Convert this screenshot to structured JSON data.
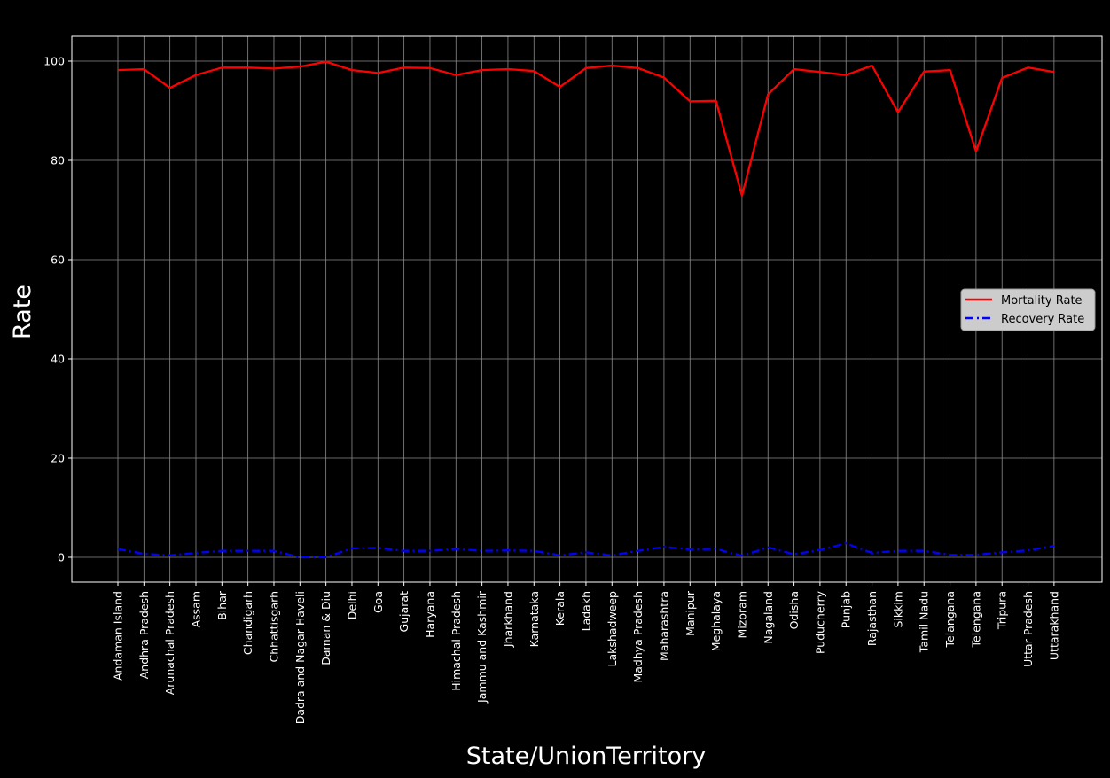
{
  "chart_data": {
    "type": "line",
    "title": "",
    "xlabel": "State/UnionTerritory",
    "ylabel": "Rate",
    "ylim": [
      -5,
      105
    ],
    "yticks": [
      0,
      20,
      40,
      60,
      80,
      100
    ],
    "ytick_labels": [
      "0",
      "20",
      "40",
      "60",
      "80",
      "100"
    ],
    "grid": true,
    "legend_position": "center-right",
    "categories": [
      "Andaman Island",
      "Andhra Pradesh",
      "Arunachal Pradesh",
      "Assam",
      "Bihar",
      "Chandigarh",
      "Chhattisgarh",
      "Dadra and Nagar Haveli",
      "Daman & Diu",
      "Delhi",
      "Goa",
      "Gujarat",
      "Haryana",
      "Himachal Pradesh",
      "Jammu and Kashmir",
      "Jharkhand",
      "Karnataka",
      "Kerala",
      "Ladakh",
      "Lakshadweep",
      "Madhya Pradesh",
      "Maharashtra",
      "Manipur",
      "Meghalaya",
      "Mizoram",
      "Nagaland",
      "Odisha",
      "Puducherry",
      "Punjab",
      "Rajasthan",
      "Sikkim",
      "Tamil Nadu",
      "Telangana",
      "Telengana",
      "Tripura",
      "Uttar Pradesh",
      "Uttarakhand"
    ],
    "series": [
      {
        "name": "Mortality Rate",
        "color": "#ff0000",
        "style": "solid",
        "values": [
          98.2,
          98.4,
          94.6,
          97.2,
          98.7,
          98.7,
          98.5,
          98.9,
          99.9,
          98.2,
          97.6,
          98.7,
          98.6,
          97.2,
          98.2,
          98.4,
          98.0,
          94.8,
          98.6,
          99.1,
          98.6,
          96.7,
          91.9,
          92.0,
          72.9,
          93.3,
          98.4,
          97.8,
          97.2,
          99.1,
          89.7,
          97.9,
          98.2,
          81.8,
          96.6,
          98.7,
          97.8
        ]
      },
      {
        "name": "Recovery Rate",
        "color": "#0000ff",
        "style": "dashdot",
        "values": [
          1.7,
          0.7,
          0.4,
          0.9,
          1.3,
          1.3,
          1.3,
          0.0,
          0.0,
          1.8,
          1.9,
          1.3,
          1.3,
          1.7,
          1.3,
          1.4,
          1.3,
          0.4,
          1.0,
          0.4,
          1.3,
          2.1,
          1.6,
          1.7,
          0.3,
          2.0,
          0.6,
          1.5,
          2.8,
          0.9,
          1.3,
          1.3,
          0.5,
          0.5,
          1.0,
          1.4,
          2.3
        ]
      }
    ]
  }
}
